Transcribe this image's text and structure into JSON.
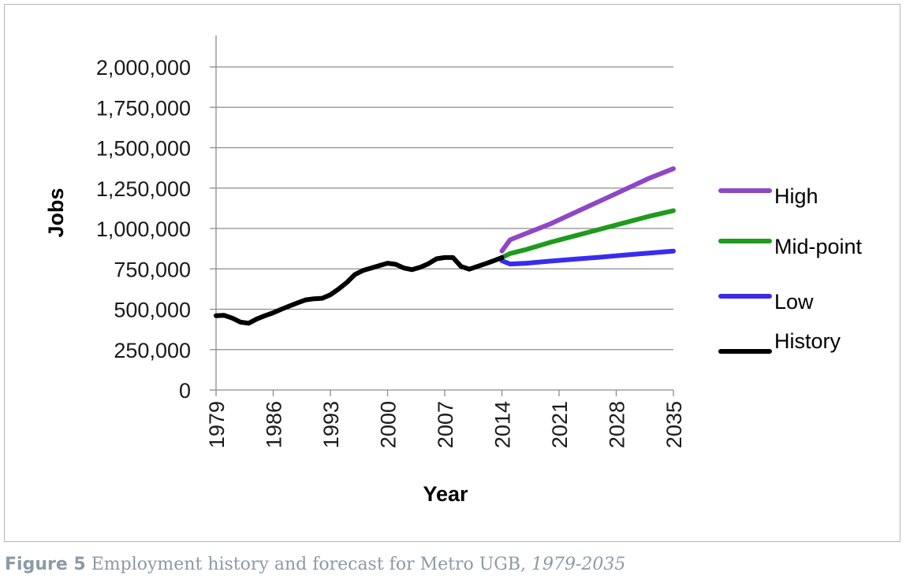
{
  "caption": {
    "label": "Figure 5",
    "text": "Employment history and forecast for Metro UGB,",
    "years": "1979-2035"
  },
  "chart_data": {
    "type": "line",
    "xlabel": "Year",
    "ylabel": "Jobs",
    "ylim": [
      0,
      2000000
    ],
    "xlim": [
      1979,
      2035
    ],
    "yticks": [
      "0",
      "250,000",
      "500,000",
      "750,000",
      "1,000,000",
      "1,250,000",
      "1,500,000",
      "1,750,000",
      "2,000,000"
    ],
    "xticks": [
      "1979",
      "1986",
      "1993",
      "2000",
      "2007",
      "2014",
      "2021",
      "2028",
      "2035"
    ],
    "grid": "horizontal",
    "legend_position": "right",
    "series": [
      {
        "name": "High",
        "color": "#8e47c5",
        "x": [
          2014,
          2015,
          2017,
          2020,
          2023,
          2026,
          2029,
          2032,
          2035
        ],
        "y": [
          860000,
          930000,
          970000,
          1030000,
          1100000,
          1170000,
          1240000,
          1310000,
          1370000
        ]
      },
      {
        "name": "Mid-point",
        "color": "#1f9a1f",
        "x": [
          2014,
          2015,
          2017,
          2020,
          2023,
          2026,
          2029,
          2032,
          2035
        ],
        "y": [
          820000,
          845000,
          870000,
          915000,
          955000,
          995000,
          1035000,
          1075000,
          1110000
        ]
      },
      {
        "name": "Low",
        "color": "#3a2bf0",
        "x": [
          2014,
          2015,
          2017,
          2020,
          2023,
          2026,
          2029,
          2032,
          2035
        ],
        "y": [
          800000,
          780000,
          785000,
          798000,
          810000,
          822000,
          835000,
          848000,
          860000
        ]
      },
      {
        "name": "History",
        "color": "#000000",
        "x": [
          1979,
          1980,
          1981,
          1982,
          1983,
          1984,
          1985,
          1986,
          1987,
          1988,
          1989,
          1990,
          1991,
          1992,
          1993,
          1994,
          1995,
          1996,
          1997,
          1998,
          1999,
          2000,
          2001,
          2002,
          2003,
          2004,
          2005,
          2006,
          2007,
          2008,
          2009,
          2010,
          2011,
          2012,
          2013,
          2014
        ],
        "y": [
          460000,
          462000,
          445000,
          420000,
          413000,
          440000,
          460000,
          478000,
          500000,
          520000,
          540000,
          558000,
          565000,
          568000,
          590000,
          625000,
          665000,
          715000,
          740000,
          755000,
          770000,
          785000,
          778000,
          755000,
          745000,
          760000,
          782000,
          812000,
          820000,
          820000,
          765000,
          748000,
          765000,
          782000,
          800000,
          820000
        ]
      }
    ]
  }
}
